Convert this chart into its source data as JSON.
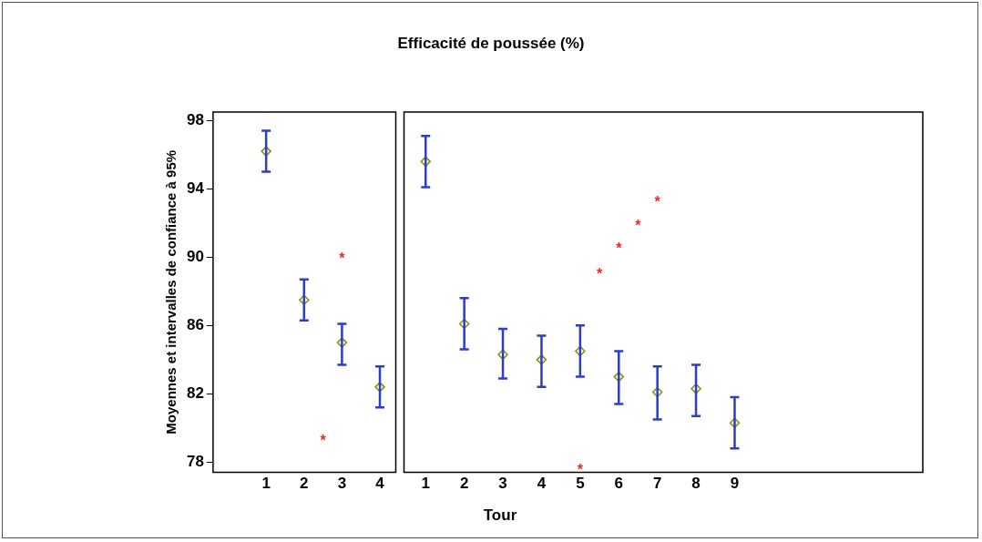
{
  "chart_data": [
    {
      "type": "scatter",
      "ylabel": "Moyennes et intervalles de confiance à 95%",
      "categories": [
        "1",
        "2",
        "3",
        "4"
      ],
      "series": [
        {
          "color": "#8c8c00",
          "values": [
            96.2,
            87.5,
            85.0,
            82.4
          ],
          "errors": [
            [
              95.0,
              97.4
            ],
            [
              86.3,
              88.7
            ],
            [
              83.7,
              86.1
            ],
            [
              81.2,
              83.6
            ]
          ]
        }
      ],
      "marker": "diamond",
      "ylim": [
        77.4,
        98.5
      ],
      "yticks": [
        78,
        82,
        86,
        90,
        94,
        98
      ],
      "annotations": [
        "*",
        "*"
      ],
      "legend": false,
      "grid": false
    },
    {
      "type": "scatter",
      "title": "Efficacité de poussée (%)",
      "xlabel": "Tour",
      "categories": [
        "1",
        "2",
        "3",
        "4",
        "5",
        "6",
        "7",
        "8",
        "9"
      ],
      "series": [
        {
          "color": "#8c8c00",
          "values": [
            95.6,
            86.1,
            84.3,
            84.0,
            84.5,
            83.0,
            82.1,
            82.3,
            80.3
          ],
          "errors": [
            [
              94.1,
              97.1
            ],
            [
              84.6,
              87.6
            ],
            [
              82.9,
              85.8
            ],
            [
              82.4,
              85.4
            ],
            [
              83.0,
              86.0
            ],
            [
              81.4,
              84.5
            ],
            [
              80.5,
              83.6
            ],
            [
              80.7,
              83.7
            ],
            [
              78.8,
              81.8
            ]
          ]
        }
      ],
      "marker": "diamond",
      "ylim": [
        77.4,
        98.5
      ],
      "yticks": [
        78,
        82,
        86,
        90,
        94,
        98
      ],
      "tick_labels": "x",
      "annotations": [
        "*",
        "*",
        "*",
        "*",
        "*"
      ],
      "legend": false,
      "grid": false
    }
  ]
}
